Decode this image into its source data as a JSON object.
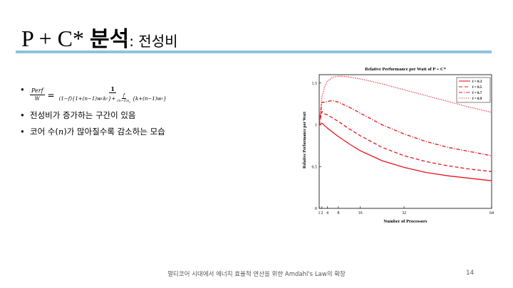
{
  "slide": {
    "title_main": "P + C* ",
    "title_korean": "분석",
    "title_sub": ": 전성비",
    "footer": "멀티코어 시대에서 에너지 효율적 연산을 위한 Amdahl's Law의 확장",
    "page_number": "14",
    "accent_color": "#8ec3dd"
  },
  "bullets": {
    "formula_lhs_num": "Perf",
    "formula_lhs_den": "W",
    "formula_equals": "=",
    "formula_rhs_num": "1",
    "formula_rhs_den_a": "(1−f){1+(n−1)w",
    "formula_rhs_den_a_sub1": "c",
    "formula_rhs_den_a_k": "k",
    "formula_rhs_den_a_sub2": "c",
    "formula_rhs_den_a_close": "}",
    "formula_plus": "+",
    "formula_inner_num": "f",
    "formula_inner_den": "(n−1)s",
    "formula_inner_den_sub": "c",
    "formula_rhs_den_b": "{k+(n−1)w",
    "formula_rhs_den_b_sub": "c",
    "formula_rhs_den_b_close": "}",
    "item2": "전성비가 증가하는 구간이 있음",
    "item3_a": "코어 수(",
    "item3_n": "n",
    "item3_b": ")가 많아질수록 감소하는 모습"
  },
  "chart_data": {
    "type": "line",
    "title": "Relative Performance per Watt of P + C*",
    "xlabel": "Number of Processors",
    "ylabel": "Relative Performance per Watt",
    "xlim": [
      1,
      64
    ],
    "ylim": [
      0,
      1.6
    ],
    "xticks": [
      1,
      2,
      4,
      8,
      16,
      32,
      64
    ],
    "xtick_labels": [
      "1",
      "2",
      "4",
      "8",
      "16",
      "32",
      "64"
    ],
    "yticks": [
      0,
      0.5,
      1,
      1.5
    ],
    "ytick_labels": [
      "0",
      "0.5",
      "1",
      "1.5"
    ],
    "legend_position": "top-right",
    "grid": false,
    "line_color": "#e8141c",
    "series": [
      {
        "name": "f = 0.3",
        "style": "solid",
        "x": [
          1,
          2,
          3,
          4,
          6,
          8,
          12,
          16,
          24,
          32,
          40,
          48,
          56,
          64
        ],
        "y": [
          1.0,
          1.02,
          0.99,
          0.96,
          0.91,
          0.86,
          0.77,
          0.69,
          0.57,
          0.49,
          0.43,
          0.39,
          0.36,
          0.33
        ]
      },
      {
        "name": "f = 0.5",
        "style": "dashed",
        "x": [
          1,
          2,
          3,
          4,
          6,
          8,
          12,
          16,
          24,
          32,
          40,
          48,
          56,
          64
        ],
        "y": [
          1.0,
          1.16,
          1.13,
          1.12,
          1.08,
          1.04,
          0.95,
          0.87,
          0.73,
          0.63,
          0.56,
          0.51,
          0.47,
          0.44
        ]
      },
      {
        "name": "f = 0.7",
        "style": "dashdot",
        "x": [
          1,
          2,
          3,
          4,
          6,
          8,
          12,
          16,
          24,
          32,
          40,
          48,
          56,
          64
        ],
        "y": [
          1.0,
          1.27,
          1.27,
          1.28,
          1.29,
          1.27,
          1.21,
          1.14,
          1.0,
          0.89,
          0.8,
          0.73,
          0.68,
          0.63
        ]
      },
      {
        "name": "f = 0.9",
        "style": "dotted",
        "x": [
          1,
          2,
          3,
          4,
          6,
          8,
          10,
          12,
          16,
          24,
          32,
          40,
          48,
          56,
          64
        ],
        "y": [
          1.0,
          1.33,
          1.46,
          1.52,
          1.57,
          1.58,
          1.58,
          1.57,
          1.55,
          1.49,
          1.42,
          1.35,
          1.28,
          1.21,
          1.15
        ]
      }
    ]
  }
}
